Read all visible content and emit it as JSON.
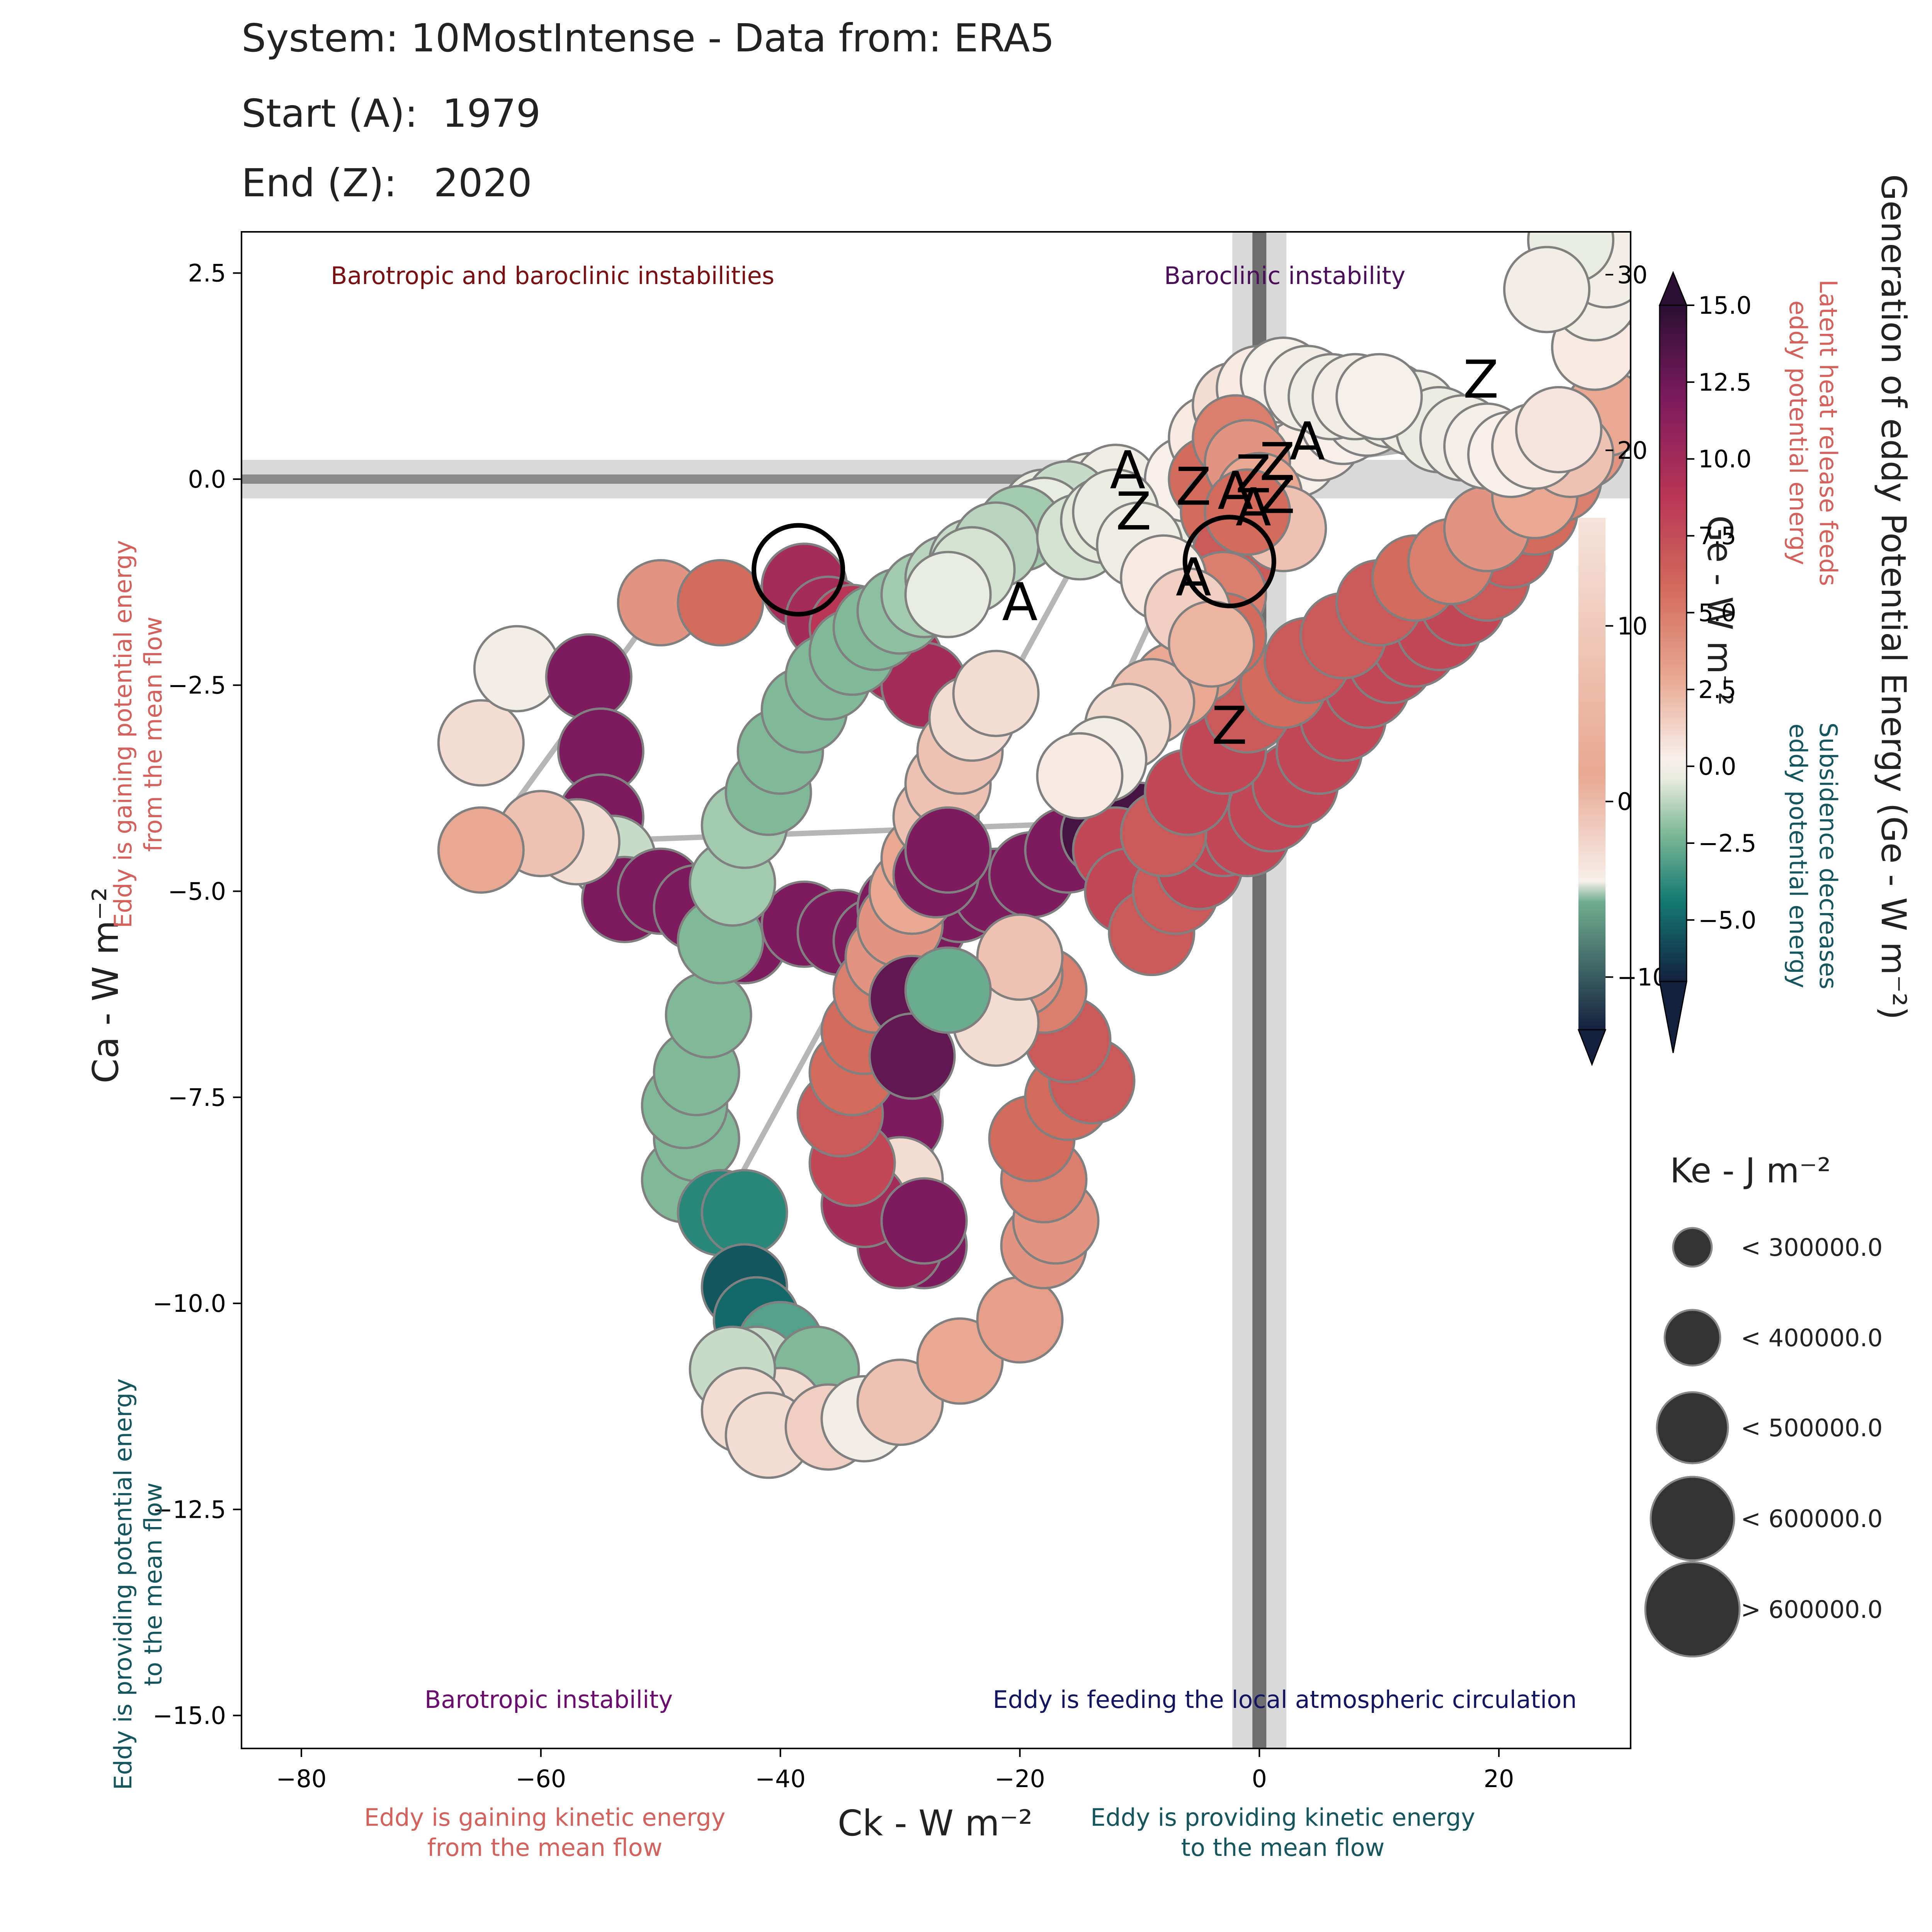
{
  "header": {
    "title": "System: 10MostIntense - Data from: ERA5",
    "start_label": "Start (A):",
    "start_value": "1979",
    "end_label": "End (Z):",
    "end_value": "2020"
  },
  "chart_data": {
    "type": "scatter",
    "xlabel": "Ck -  W m⁻²",
    "ylabel": "Ca -  W m⁻²",
    "xlim": [
      -85,
      31
    ],
    "ylim": [
      -15.4,
      3.0
    ],
    "x_ticks": [
      -80,
      -60,
      -40,
      -20,
      0,
      20
    ],
    "y_ticks": [
      2.5,
      0.0,
      -2.5,
      -5.0,
      -7.5,
      -10.0,
      -12.5,
      -15.0
    ],
    "y_tick_labels": [
      "2.5",
      "0.0",
      "−2.5",
      "−5.0",
      "−7.5",
      "−10.0",
      "−12.5",
      "−15.0"
    ],
    "x_tick_labels": [
      "−80",
      "−60",
      "−40",
      "−20",
      "0",
      "20"
    ],
    "quadrant_labels": {
      "top_left": "Barotropic and baroclinic instabilities",
      "top_right": "Baroclinic instability",
      "bottom_left": "Barotropic instability",
      "bottom_right": "Eddy is feeding the local atmospheric circulation"
    },
    "axis_annotations": {
      "x_negative": "Eddy is gaining kinetic energy\nfrom the mean flow",
      "x_positive": "Eddy is providing kinetic energy\nto the mean flow",
      "y_positive": "Eddy is gaining potential energy\nfrom the mean flow",
      "y_negative": "Eddy is providing potential energy\nto the mean flow"
    },
    "colorbar_ge": {
      "label": "Generation of eddy Potential Energy (Ge -  W m⁻²)",
      "ticks": [
        15.0,
        12.5,
        10.0,
        7.5,
        5.0,
        2.5,
        0.0,
        -2.5,
        -5.0
      ],
      "tick_labels": [
        "15.0",
        "12.5",
        "10.0",
        "7.5",
        "5.0",
        "2.5",
        "0.0",
        "−2.5",
        "−5.0"
      ],
      "range": [
        -7.0,
        15.0
      ],
      "positive_note": "Latent heat release feeds\neddy potential energy",
      "negative_note": "Subsidence decreases\neddy potential energy"
    },
    "colorbar_back": {
      "label": "Ge -  W m⁻²",
      "ticks": [
        30,
        20,
        10,
        0,
        -10
      ],
      "tick_labels": [
        "30",
        "20",
        "10",
        "0",
        "−10"
      ],
      "range": [
        -13,
        32
      ]
    },
    "size_legend": {
      "title": "Ke -  J m⁻²",
      "entries": [
        "< 300000.0",
        "< 400000.0",
        "< 500000.0",
        "< 600000.0",
        "> 600000.0"
      ]
    },
    "marker_labels": [
      {
        "text": "A",
        "x": -11,
        "y": 0.1
      },
      {
        "text": "Z",
        "x": -10.5,
        "y": -0.4
      },
      {
        "text": "Z",
        "x": -5.5,
        "y": -0.1
      },
      {
        "text": "A",
        "x": -2.0,
        "y": -0.15
      },
      {
        "text": "Z",
        "x": -0.5,
        "y": 0.05
      },
      {
        "text": "Z",
        "x": 1.5,
        "y": 0.2
      },
      {
        "text": "A",
        "x": 4.0,
        "y": 0.45
      },
      {
        "text": "A",
        "x": -0.5,
        "y": -0.35
      },
      {
        "text": "Z",
        "x": 1.5,
        "y": -0.2
      },
      {
        "text": "A",
        "x": -20,
        "y": -1.5
      },
      {
        "text": "A",
        "x": -5.5,
        "y": -1.2
      },
      {
        "text": "Z",
        "x": -2.5,
        "y": -3.0
      },
      {
        "text": "Z",
        "x": 18.5,
        "y": 1.2
      }
    ],
    "series": [
      {
        "points": [
          [
            -65,
            -3.2,
            1
          ],
          [
            -62,
            -2.3,
            0
          ],
          [
            -56,
            -2.4,
            12
          ],
          [
            -55,
            -3.3,
            12
          ],
          [
            -55,
            -4.1,
            12
          ],
          [
            -54,
            -4.6,
            -1
          ],
          [
            -53,
            -5.1,
            12
          ],
          [
            -50,
            -5.0,
            12
          ],
          [
            -47,
            -5.2,
            12
          ],
          [
            -43,
            -5.6,
            12
          ],
          [
            -38,
            -5.4,
            12
          ],
          [
            -35,
            -5.5,
            12
          ],
          [
            -32,
            -5.6,
            12
          ],
          [
            -30,
            -5.2,
            12
          ],
          [
            -28,
            -5.4,
            12
          ],
          [
            -25,
            -5.1,
            12
          ],
          [
            -22,
            -5.0,
            12
          ],
          [
            -19,
            -4.8,
            12
          ],
          [
            -16,
            -4.5,
            12
          ],
          [
            -13,
            -4.3,
            14
          ],
          [
            -10,
            -4.2,
            14
          ],
          [
            -6,
            -4.1,
            15
          ],
          [
            -3,
            -4.0,
            15
          ],
          [
            -1,
            -4.1,
            15
          ],
          [
            -57,
            -4.4,
            1
          ],
          [
            -60,
            -4.3,
            2
          ],
          [
            -65,
            -4.5,
            3
          ],
          [
            -50,
            -1.5,
            4
          ],
          [
            -45,
            -1.5,
            6
          ],
          [
            -38,
            -1.3,
            10
          ],
          [
            -36,
            -1.7,
            10
          ],
          [
            -34,
            -1.8,
            9
          ],
          [
            -32,
            -2.0,
            10
          ],
          [
            -30,
            -2.2,
            10
          ],
          [
            -28,
            -2.5,
            10
          ]
        ]
      },
      {
        "points": [
          [
            -48,
            -8.5,
            -2
          ],
          [
            -47,
            -8.0,
            -2
          ],
          [
            -48,
            -7.6,
            -2
          ],
          [
            -47,
            -7.2,
            -2
          ],
          [
            -46,
            -6.5,
            -2
          ],
          [
            -45,
            -5.6,
            -2
          ],
          [
            -44,
            -4.9,
            -1.5
          ],
          [
            -43,
            -4.2,
            -1.5
          ],
          [
            -41,
            -3.8,
            -2
          ],
          [
            -40,
            -3.3,
            -2
          ],
          [
            -38,
            -2.8,
            -2
          ],
          [
            -36,
            -2.4,
            -2
          ],
          [
            -34,
            -2.1,
            -2
          ],
          [
            -32,
            -1.8,
            -2
          ],
          [
            -30,
            -1.6,
            -1.8
          ],
          [
            -28,
            -1.4,
            -1.5
          ],
          [
            -26,
            -1.2,
            -1.2
          ],
          [
            -24,
            -1.0,
            -1.0
          ],
          [
            -22,
            -0.8,
            -0.8
          ],
          [
            -20,
            -0.6,
            -0.6
          ],
          [
            -18,
            -0.4,
            -0.5
          ],
          [
            -16,
            -0.3,
            -0.4
          ],
          [
            -14,
            -0.2,
            -0.3
          ],
          [
            -12,
            -0.1,
            -0.2
          ],
          [
            -45,
            -8.9,
            -4
          ],
          [
            -43,
            -8.9,
            -4
          ],
          [
            -43,
            -9.8,
            -5.5
          ],
          [
            -42,
            -10.2,
            -5
          ],
          [
            -40,
            -10.5,
            -3
          ],
          [
            -42,
            -10.8,
            -1
          ],
          [
            -38,
            -11.1,
            -1.5
          ],
          [
            -37,
            -10.8,
            -2
          ],
          [
            -40,
            -11.3,
            1
          ],
          [
            -44,
            -10.8,
            -1
          ],
          [
            -43,
            -11.3,
            1
          ],
          [
            -41,
            -11.6,
            1
          ],
          [
            -36,
            -11.5,
            1.5
          ],
          [
            -33,
            -11.4,
            0
          ],
          [
            -30,
            -11.2,
            2
          ],
          [
            -25,
            -10.7,
            3
          ],
          [
            -20,
            -10.2,
            3.5
          ],
          [
            -18,
            -9.3,
            4
          ],
          [
            -17,
            -9.0,
            4
          ],
          [
            -18,
            -8.5,
            5
          ],
          [
            -19,
            -8.0,
            6
          ],
          [
            -16,
            -7.5,
            6
          ],
          [
            -14,
            -7.3,
            7
          ],
          [
            -16,
            -6.8,
            7
          ],
          [
            -18,
            -6.2,
            5
          ],
          [
            -20,
            -6.0,
            4
          ],
          [
            -22,
            -6.6,
            1
          ],
          [
            -20,
            -5.8,
            2
          ]
        ]
      },
      {
        "points": [
          [
            -30,
            -7.8,
            12
          ],
          [
            -30,
            -8.5,
            1
          ],
          [
            -29,
            -9.1,
            12
          ],
          [
            -28,
            -9.3,
            12
          ],
          [
            -30,
            -9.3,
            11
          ],
          [
            -33,
            -8.8,
            10
          ],
          [
            -34,
            -8.3,
            8
          ],
          [
            -35,
            -7.7,
            7
          ],
          [
            -34,
            -7.2,
            6
          ],
          [
            -33,
            -6.7,
            6
          ],
          [
            -32,
            -6.2,
            5
          ],
          [
            -31,
            -5.8,
            4
          ],
          [
            -30,
            -5.4,
            4
          ],
          [
            -29,
            -5.0,
            3
          ],
          [
            -28,
            -4.6,
            3
          ],
          [
            -27,
            -4.1,
            2
          ],
          [
            -26,
            -3.7,
            2
          ],
          [
            -25,
            -3.3,
            2
          ],
          [
            -24,
            -2.9,
            1
          ],
          [
            -22,
            -2.6,
            1
          ],
          [
            -29,
            -6.3,
            13
          ],
          [
            -29,
            -7.0,
            13
          ],
          [
            -26,
            -6.2,
            -2.5
          ],
          [
            -28,
            -9.0,
            12
          ],
          [
            -27,
            -4.8,
            12
          ],
          [
            -26,
            -4.5,
            12
          ]
        ]
      },
      {
        "points": [
          [
            -12,
            -4.5,
            8
          ],
          [
            -11,
            -5.0,
            8
          ],
          [
            -9,
            -5.5,
            7
          ],
          [
            -7,
            -5.0,
            7
          ],
          [
            -5,
            -4.7,
            8
          ],
          [
            -3,
            -4.3,
            8
          ],
          [
            -1,
            -4.3,
            8
          ],
          [
            1,
            -4.0,
            8
          ],
          [
            3,
            -3.7,
            8
          ],
          [
            5,
            -3.3,
            8
          ],
          [
            7,
            -2.9,
            8
          ],
          [
            9,
            -2.5,
            8
          ],
          [
            11,
            -2.2,
            8
          ],
          [
            13,
            -2.0,
            8
          ],
          [
            15,
            -1.8,
            8
          ],
          [
            17,
            -1.5,
            8
          ],
          [
            19,
            -1.2,
            7
          ],
          [
            21,
            -0.8,
            7
          ],
          [
            23,
            -0.4,
            6
          ],
          [
            25,
            0.0,
            5
          ],
          [
            27,
            0.4,
            4
          ],
          [
            29,
            0.8,
            3
          ],
          [
            -8,
            -4.3,
            7
          ],
          [
            -6,
            -3.8,
            8
          ],
          [
            -3,
            -3.3,
            8
          ],
          [
            -1,
            -2.8,
            7
          ],
          [
            2,
            -2.5,
            6
          ],
          [
            4,
            -2.2,
            7
          ],
          [
            7,
            -1.9,
            7
          ],
          [
            10,
            -1.5,
            7
          ],
          [
            13,
            -1.2,
            6
          ],
          [
            16,
            -1.0,
            5
          ],
          [
            19,
            -0.6,
            4
          ],
          [
            23,
            -0.2,
            3
          ],
          [
            26,
            0.3,
            2
          ],
          [
            28,
            1.6,
            0.5
          ],
          [
            28,
            2.2,
            0
          ],
          [
            29,
            2.6,
            0
          ],
          [
            26,
            2.9,
            -0.5
          ],
          [
            24,
            2.3,
            0
          ]
        ]
      },
      {
        "points": [
          [
            -9,
            -0.9,
            0
          ],
          [
            -7,
            -0.7,
            -0.5
          ],
          [
            -5,
            -0.5,
            -0.5
          ],
          [
            -3,
            -0.3,
            -0.4
          ],
          [
            -1,
            -0.1,
            -0.2
          ],
          [
            1,
            0.1,
            -0.1
          ],
          [
            3,
            0.3,
            0.2
          ],
          [
            5,
            0.5,
            0.5
          ],
          [
            7,
            0.7,
            0.3
          ],
          [
            9,
            0.8,
            0
          ],
          [
            11,
            0.9,
            -0.2
          ],
          [
            13,
            0.8,
            -0.3
          ],
          [
            15,
            0.6,
            -0.4
          ],
          [
            17,
            0.5,
            -0.2
          ],
          [
            19,
            0.4,
            0.1
          ],
          [
            21,
            0.3,
            0.3
          ],
          [
            23,
            0.4,
            0.5
          ],
          [
            25,
            0.6,
            0.7
          ],
          [
            -6,
            0.0,
            0.3
          ],
          [
            -4,
            0.5,
            0.5
          ],
          [
            -2,
            0.9,
            1
          ],
          [
            0,
            1.1,
            0.5
          ],
          [
            2,
            1.2,
            0.2
          ],
          [
            4,
            1.1,
            0
          ],
          [
            6,
            1.0,
            -0.2
          ],
          [
            8,
            1.0,
            0
          ],
          [
            10,
            1.0,
            0.2
          ],
          [
            -4,
            0.0,
            6
          ],
          [
            -3,
            -0.4,
            6
          ],
          [
            -2,
            -0.9,
            7
          ],
          [
            -3,
            -1.4,
            5
          ],
          [
            -3,
            -1.9,
            6
          ],
          [
            -5,
            -2.2,
            4
          ],
          [
            -7,
            -2.5,
            3
          ],
          [
            -9,
            -2.7,
            2
          ],
          [
            -11,
            -3.0,
            1
          ],
          [
            -13,
            -3.4,
            0
          ],
          [
            -15,
            -3.6,
            0.5
          ],
          [
            -2,
            0.5,
            5
          ],
          [
            -1,
            0.2,
            4
          ],
          [
            0,
            -0.2,
            3
          ],
          [
            2,
            -0.6,
            2
          ],
          [
            -1,
            -0.4,
            6
          ],
          [
            -16,
            -0.3,
            -1
          ],
          [
            -18,
            -0.5,
            -0.5
          ],
          [
            -20,
            -0.6,
            -1.5
          ],
          [
            -22,
            -0.8,
            -1.2
          ],
          [
            -24,
            -1.1,
            -0.8
          ],
          [
            -26,
            -1.4,
            -0.5
          ],
          [
            -15,
            -0.7,
            -0.8
          ],
          [
            -13,
            -0.5,
            -0.6
          ],
          [
            -12,
            -0.4,
            -0.4
          ],
          [
            -10,
            -0.8,
            -0.3
          ],
          [
            -8,
            -1.2,
            0.5
          ],
          [
            -6,
            -1.6,
            1.5
          ],
          [
            -4,
            -2.0,
            2.5
          ]
        ]
      }
    ],
    "bold_circles": [
      {
        "x": -38.5,
        "y": -1.1
      },
      {
        "x": -2.5,
        "y": -1.0
      }
    ]
  }
}
